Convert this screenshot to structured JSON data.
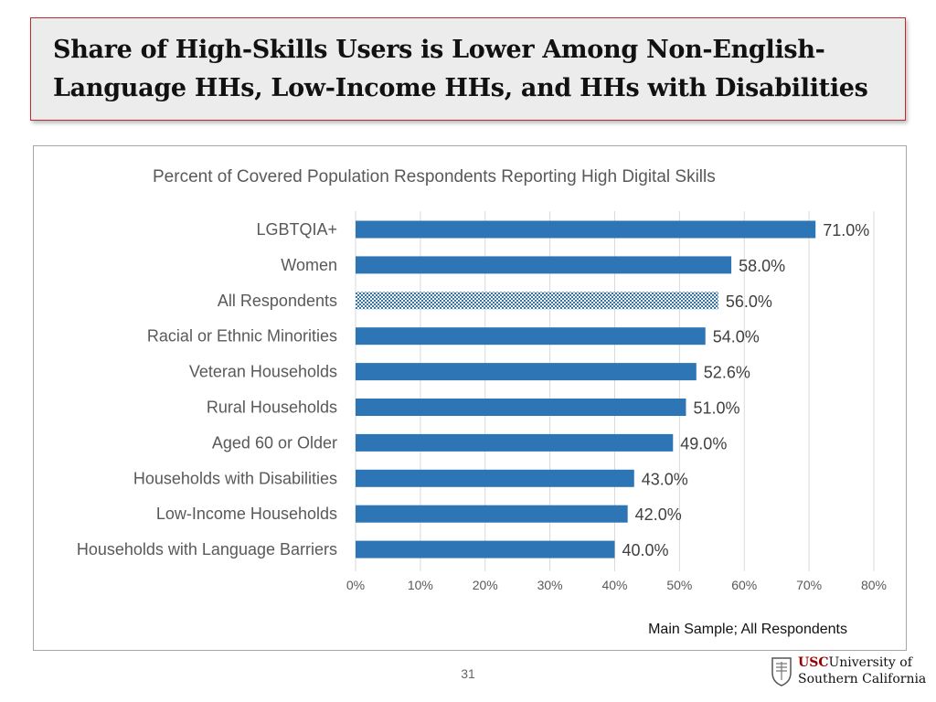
{
  "slide": {
    "title_line1": "Share of High-Skills Users is Lower Among Non-English-",
    "title_line2": "Language HHs, Low-Income HHs, and HHs with Disabilities",
    "page_number": "31",
    "logo": {
      "usc": "USC",
      "university_of": "University of",
      "southern_california": "Southern California"
    }
  },
  "chart_data": {
    "type": "bar",
    "orientation": "horizontal",
    "title": "Percent of Covered Population Respondents Reporting High Digital Skills",
    "categories": [
      "LGBTQIA+",
      "Women",
      "All Respondents",
      "Racial or Ethnic Minorities",
      "Veteran Households",
      "Rural Households",
      "Aged 60 or Older",
      "Households with Disabilities",
      "Low-Income Households",
      "Households with Language Barriers"
    ],
    "values": [
      71.0,
      58.0,
      56.0,
      54.0,
      52.6,
      51.0,
      49.0,
      43.0,
      42.0,
      40.0
    ],
    "data_labels": [
      "71.0%",
      "58.0%",
      "56.0%",
      "54.0%",
      "52.6%",
      "51.0%",
      "49.0%",
      "43.0%",
      "42.0%",
      "40.0%"
    ],
    "highlighted": [
      false,
      false,
      true,
      false,
      false,
      false,
      false,
      false,
      false,
      false
    ],
    "xlim": [
      0,
      80
    ],
    "x_ticks": [
      "0%",
      "10%",
      "20%",
      "30%",
      "40%",
      "50%",
      "60%",
      "70%",
      "80%"
    ],
    "vertical_grid": true,
    "legend": "none",
    "bar_color": "#2e75b6",
    "highlight_color": "#9dc3e6",
    "note": "Main Sample; All Respondents"
  }
}
